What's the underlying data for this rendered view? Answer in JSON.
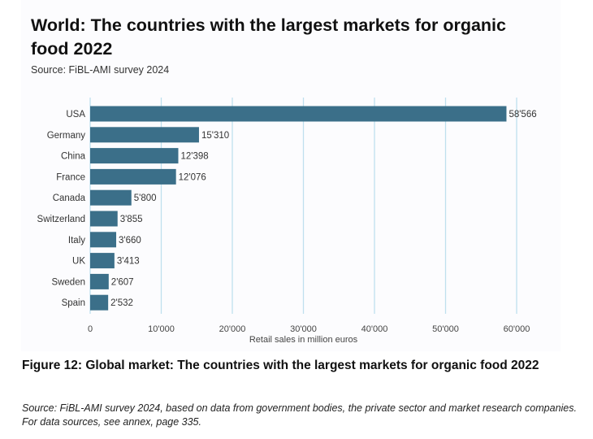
{
  "title": "World: The countries with the largest markets for organic food 2022",
  "subtitle": "Source: FiBL-AMI survey 2024",
  "caption": "Figure 12: Global market: The countries with the largest markets for organic food 2022",
  "source_note": "Source: FiBL-AMI survey 2024, based on data from government bodies, the private sector and market research companies. For data sources, see annex, page 335.",
  "colors": {
    "bar": "#3b6f89",
    "grid": "#bfe0ee"
  },
  "chart_data": {
    "type": "bar",
    "orientation": "horizontal",
    "title": "World: The countries with the largest markets for organic food 2022",
    "xlabel": "Retail sales in million euros",
    "ylabel": "",
    "categories": [
      "USA",
      "Germany",
      "China",
      "France",
      "Canada",
      "Switzerland",
      "Italy",
      "UK",
      "Sweden",
      "Spain"
    ],
    "values": [
      58566,
      15310,
      12398,
      12076,
      5800,
      3855,
      3660,
      3413,
      2607,
      2532
    ],
    "value_labels": [
      "58'566",
      "15'310",
      "12'398",
      "12'076",
      "5'800",
      "3'855",
      "3'660",
      "3'413",
      "2'607",
      "2'532"
    ],
    "xlim": [
      0,
      60000
    ],
    "ticks": [
      0,
      10000,
      20000,
      30000,
      40000,
      50000,
      60000
    ],
    "tick_labels": [
      "0",
      "10'000",
      "20'000",
      "30'000",
      "40'000",
      "50'000",
      "60'000"
    ],
    "grid": true
  }
}
